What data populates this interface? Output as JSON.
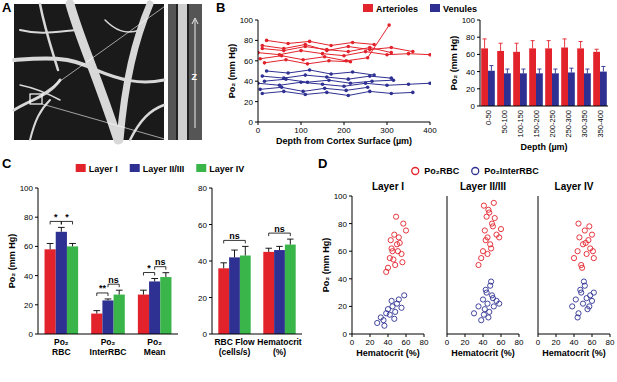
{
  "panel_labels": [
    "A",
    "B",
    "C",
    "D"
  ],
  "image": {
    "label": "Z"
  },
  "chart_data": [
    {
      "type": "line",
      "xlabel": "Depth from Cortex Surface (µm)",
      "ylabel": "Po₂ (mm Hg)",
      "xlim": [
        0,
        400
      ],
      "xticks": [
        0,
        100,
        200,
        300,
        400
      ],
      "ylim": [
        0,
        100
      ],
      "yticks": [
        0,
        20,
        40,
        60,
        80,
        100
      ],
      "legend": "top",
      "marker": "circle",
      "series": [
        {
          "name": "Arterioles",
          "color": "#e3232c",
          "x": [
            10,
            60,
            110,
            160,
            210,
            260,
            310
          ],
          "values": [
            72,
            70,
            74,
            71,
            69,
            73,
            68
          ]
        },
        {
          "name": "Arterioles",
          "color": "#e3232c",
          "x": [
            0,
            50,
            100,
            150,
            200,
            250,
            300,
            350,
            400
          ],
          "values": [
            68,
            66,
            70,
            67,
            65,
            69,
            66,
            67,
            66
          ]
        },
        {
          "name": "Arterioles",
          "color": "#e3232c",
          "x": [
            20,
            70,
            120,
            170,
            220,
            270
          ],
          "values": [
            80,
            77,
            79,
            75,
            78,
            76
          ]
        },
        {
          "name": "Arterioles",
          "color": "#e3232c",
          "x": [
            5,
            55,
            105,
            155,
            205,
            255,
            305
          ],
          "values": [
            62,
            65,
            61,
            64,
            60,
            63,
            95
          ]
        },
        {
          "name": "Arterioles",
          "color": "#e3232c",
          "x": [
            15,
            65,
            115,
            165,
            215
          ],
          "values": [
            58,
            61,
            57,
            60,
            59
          ]
        },
        {
          "name": "Arterioles",
          "color": "#e3232c",
          "x": [
            10,
            60,
            110,
            160,
            210,
            260,
            310,
            360
          ],
          "values": [
            75,
            72,
            76,
            70,
            74,
            71,
            73,
            69
          ]
        },
        {
          "name": "Venules",
          "color": "#2e3192",
          "x": [
            10,
            60,
            110,
            160,
            210,
            260,
            310
          ],
          "values": [
            45,
            43,
            46,
            44,
            42,
            45,
            43
          ]
        },
        {
          "name": "Venules",
          "color": "#2e3192",
          "x": [
            0,
            50,
            100,
            150,
            200,
            250,
            300,
            350,
            400
          ],
          "values": [
            38,
            36,
            39,
            37,
            35,
            38,
            36,
            37,
            38
          ]
        },
        {
          "name": "Venules",
          "color": "#2e3192",
          "x": [
            20,
            70,
            120,
            170,
            220,
            270
          ],
          "values": [
            50,
            48,
            51,
            47,
            49,
            46
          ]
        },
        {
          "name": "Venules",
          "color": "#2e3192",
          "x": [
            5,
            55,
            105,
            155,
            205,
            255
          ],
          "values": [
            32,
            34,
            30,
            33,
            31,
            34
          ]
        },
        {
          "name": "Venules",
          "color": "#2e3192",
          "x": [
            15,
            65,
            115,
            165,
            215,
            265,
            315
          ],
          "values": [
            40,
            42,
            39,
            41,
            38,
            40,
            41
          ]
        },
        {
          "name": "Venules",
          "color": "#2e3192",
          "x": [
            10,
            60,
            110,
            160,
            210,
            260,
            310,
            360
          ],
          "values": [
            28,
            30,
            27,
            29,
            26,
            30,
            28,
            29
          ]
        }
      ]
    },
    {
      "type": "bar",
      "xlabel": "Depth (µm)",
      "ylabel": "Po₂ (mm Hg)",
      "ylim": [
        0,
        100
      ],
      "yticks": [
        0,
        20,
        40,
        60,
        80,
        100
      ],
      "categories": [
        "0-50",
        "50-100",
        "100-150",
        "150-200",
        "200-250",
        "250-300",
        "300-350",
        "350-400"
      ],
      "series": [
        {
          "color": "#e3232c",
          "values": [
            67,
            64,
            63,
            67,
            67,
            68,
            67,
            63
          ],
          "errors": [
            11,
            9,
            10,
            9,
            9,
            10,
            8,
            3
          ]
        },
        {
          "color": "#2e3192",
          "values": [
            41,
            38,
            38,
            38,
            38,
            39,
            38,
            40
          ],
          "errors": [
            6,
            5,
            5,
            5,
            5,
            5,
            5,
            6
          ]
        }
      ]
    },
    {
      "type": "bar",
      "ylabel": "Po₂ (mm Hg)",
      "ylim": [
        0,
        100
      ],
      "yticks": [
        0,
        20,
        40,
        60,
        80,
        100
      ],
      "legend": "top",
      "categories": [
        "Po₂ RBC",
        "Po₂ InterRBC",
        "Po₂ Mean"
      ],
      "series": [
        {
          "name": "Layer I",
          "color": "#e3232c",
          "values": [
            58,
            14,
            27
          ],
          "errors": [
            4,
            2,
            3
          ]
        },
        {
          "name": "Layer II/III",
          "color": "#2e3192",
          "values": [
            70,
            23,
            36
          ],
          "errors": [
            3,
            1,
            2
          ]
        },
        {
          "name": "Layer IV",
          "color": "#3ab54a",
          "values": [
            60,
            27,
            39
          ],
          "errors": [
            2,
            3,
            3
          ]
        }
      ],
      "annotations": [
        {
          "text": "*",
          "category": 0,
          "between": [
            0,
            1
          ]
        },
        {
          "text": "*",
          "category": 0,
          "between": [
            1,
            2
          ]
        },
        {
          "text": "**",
          "category": 1,
          "between": [
            0,
            1
          ]
        },
        {
          "text": "ns",
          "category": 1,
          "between": [
            1,
            2
          ]
        },
        {
          "text": "*",
          "category": 2,
          "between": [
            0,
            1
          ]
        },
        {
          "text": "ns",
          "category": 2,
          "between": [
            1,
            2
          ]
        }
      ]
    },
    {
      "type": "bar",
      "ylim": [
        0,
        80
      ],
      "yticks": [
        0,
        20,
        40,
        60,
        80
      ],
      "categories": [
        "RBC Flow (cells/s)",
        "Hematocrit (%)"
      ],
      "series": [
        {
          "color": "#e3232c",
          "values": [
            36,
            45
          ],
          "errors": [
            3,
            2
          ]
        },
        {
          "color": "#2e3192",
          "values": [
            42,
            46
          ],
          "errors": [
            4,
            2
          ]
        },
        {
          "color": "#3ab54a",
          "values": [
            43,
            49
          ],
          "errors": [
            5,
            3
          ]
        }
      ],
      "annotations": [
        {
          "text": "ns",
          "category": 0,
          "between": [
            0,
            2
          ]
        },
        {
          "text": "ns",
          "category": 1,
          "between": [
            0,
            2
          ]
        }
      ]
    },
    {
      "type": "scatter",
      "title": "Layer I",
      "xlabel": "Hematocrit (%)",
      "ylabel": "Po₂ (mm Hg)",
      "xlim": [
        0,
        80
      ],
      "xticks": [
        0,
        20,
        40,
        60,
        80
      ],
      "ylim": [
        0,
        100
      ],
      "yticks": [
        0,
        20,
        40,
        60,
        80,
        100
      ],
      "legend": "top",
      "marker": "circle-open",
      "series": [
        {
          "name": "Po₂RBC",
          "color": "#e3232c",
          "x": [
            38,
            42,
            45,
            48,
            50,
            52,
            55,
            40,
            44,
            47,
            53,
            57,
            60,
            49,
            46,
            51,
            43,
            56
          ],
          "values": [
            45,
            55,
            60,
            50,
            65,
            70,
            58,
            48,
            62,
            72,
            66,
            80,
            75,
            85,
            54,
            60,
            68,
            52
          ]
        },
        {
          "name": "Po₂InterRBC",
          "color": "#2e3192",
          "x": [
            28,
            32,
            35,
            38,
            40,
            42,
            45,
            48,
            50,
            52,
            55,
            58,
            36,
            44,
            47
          ],
          "values": [
            8,
            12,
            10,
            15,
            18,
            14,
            20,
            16,
            22,
            25,
            19,
            28,
            6,
            24,
            11
          ]
        }
      ]
    },
    {
      "type": "scatter",
      "title": "Layer II/III",
      "xlabel": "Hematocrit (%)",
      "xlim": [
        0,
        80
      ],
      "xticks": [
        0,
        20,
        40,
        60,
        80
      ],
      "ylim": [
        0,
        100
      ],
      "tick_labels": "x",
      "marker": "circle-open",
      "series": [
        {
          "color": "#e3232c",
          "x": [
            35,
            40,
            42,
            44,
            45,
            46,
            48,
            50,
            52,
            55,
            38,
            43,
            47,
            49,
            51,
            53,
            41,
            45,
            58,
            60
          ],
          "values": [
            50,
            60,
            75,
            85,
            70,
            90,
            65,
            80,
            95,
            72,
            55,
            68,
            88,
            62,
            78,
            84,
            93,
            58,
            70,
            76
          ]
        },
        {
          "color": "#2e3192",
          "x": [
            30,
            35,
            40,
            42,
            44,
            45,
            46,
            48,
            50,
            52,
            55,
            38,
            43,
            47,
            49,
            51,
            58,
            41
          ],
          "values": [
            15,
            20,
            25,
            18,
            30,
            22,
            12,
            35,
            28,
            20,
            24,
            10,
            32,
            16,
            38,
            26,
            22,
            14
          ]
        }
      ]
    },
    {
      "type": "scatter",
      "title": "Layer IV",
      "xlabel": "Hematocrit (%)",
      "xlim": [
        0,
        80
      ],
      "xticks": [
        0,
        20,
        40,
        60,
        80
      ],
      "ylim": [
        0,
        100
      ],
      "tick_labels": "x",
      "marker": "circle-open",
      "series": [
        {
          "color": "#e3232c",
          "x": [
            40,
            44,
            46,
            48,
            50,
            52,
            54,
            56,
            58,
            60,
            62,
            45,
            49,
            53,
            57,
            61
          ],
          "values": [
            55,
            60,
            70,
            50,
            65,
            75,
            58,
            68,
            62,
            72,
            55,
            80,
            48,
            66,
            78,
            60
          ]
        },
        {
          "color": "#2e3192",
          "x": [
            38,
            42,
            45,
            48,
            50,
            52,
            55,
            58,
            60,
            44,
            47,
            51,
            54,
            57,
            62
          ],
          "values": [
            20,
            25,
            15,
            30,
            22,
            35,
            18,
            28,
            24,
            12,
            32,
            38,
            26,
            20,
            30
          ]
        }
      ]
    }
  ]
}
